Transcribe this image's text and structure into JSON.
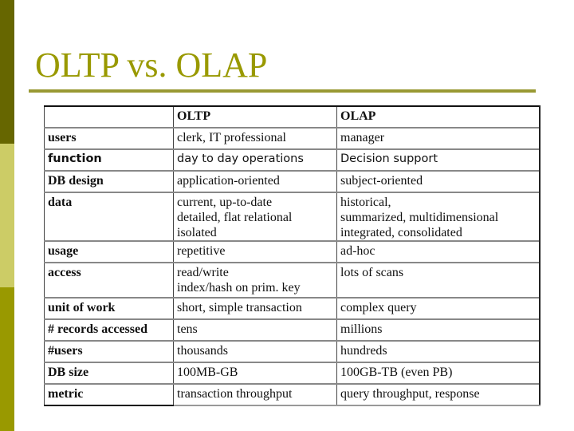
{
  "slide": {
    "title": "OLTP vs. OLAP",
    "colors": {
      "title": "#999900",
      "rule": "#999933",
      "sidebar_top": "#666600",
      "sidebar_mid": "#cccc66",
      "sidebar_bottom": "#999900"
    }
  },
  "table": {
    "headers": [
      "",
      "OLTP",
      "OLAP"
    ],
    "rows": [
      {
        "label": "users",
        "oltp": [
          "clerk, IT professional"
        ],
        "olap": [
          "manager"
        ]
      },
      {
        "label": "function",
        "oltp": [
          "day to day operations"
        ],
        "olap": [
          "Decision support"
        ]
      },
      {
        "label": "DB design",
        "oltp": [
          "application-oriented"
        ],
        "olap": [
          "subject-oriented"
        ]
      },
      {
        "label": "data",
        "oltp": [
          "current, up-to-date",
          "detailed, flat relational",
          "isolated"
        ],
        "olap": [
          "historical,",
          "summarized, multidimensional",
          "integrated, consolidated"
        ]
      },
      {
        "label": "usage",
        "oltp": [
          "repetitive"
        ],
        "olap": [
          "ad-hoc"
        ]
      },
      {
        "label": "access",
        "oltp": [
          "read/write",
          "index/hash on prim. key"
        ],
        "olap": [
          "lots of scans"
        ]
      },
      {
        "label": "unit of work",
        "oltp": [
          "short, simple transaction"
        ],
        "olap": [
          "complex query"
        ]
      },
      {
        "label": "# records accessed",
        "oltp": [
          "tens"
        ],
        "olap": [
          "millions"
        ]
      },
      {
        "label": "#users",
        "oltp": [
          "thousands"
        ],
        "olap": [
          "hundreds"
        ]
      },
      {
        "label": "DB size",
        "oltp": [
          "100MB-GB"
        ],
        "olap": [
          "100GB-TB (even PB)"
        ]
      },
      {
        "label": "metric",
        "oltp": [
          "transaction throughput"
        ],
        "olap": [
          "query throughput, response"
        ]
      }
    ]
  }
}
